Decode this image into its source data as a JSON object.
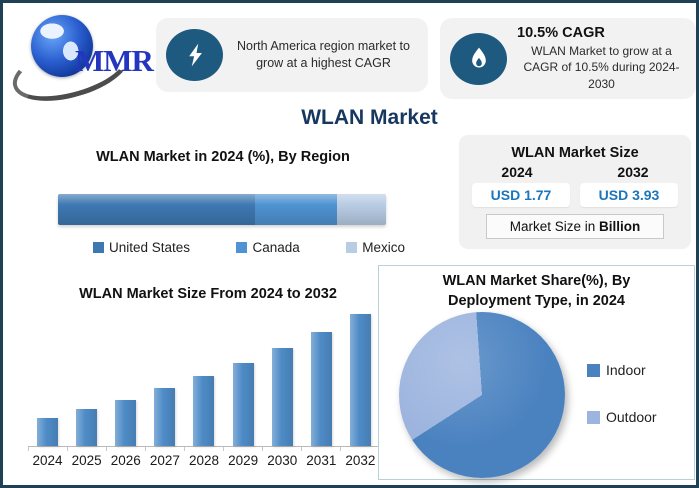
{
  "page": {
    "main_title": "WLAN Market"
  },
  "logo": {
    "text": "MMR"
  },
  "callout_lightning": {
    "icon": "lightning-icon",
    "text": "North America region market to grow at a highest CAGR"
  },
  "callout_flame": {
    "icon": "flame-icon",
    "heading": "10.5% CAGR",
    "text": "WLAN Market to grow at a CAGR of 10.5% during 2024-2030"
  },
  "market_size_panel": {
    "title": "WLAN Market Size",
    "entries": [
      {
        "year": "2024",
        "value": "USD 1.77"
      },
      {
        "year": "2032",
        "value": "USD 3.93"
      }
    ],
    "note_prefix": "Market Size in ",
    "note_bold": "Billion",
    "value_color": "#1b76bc"
  },
  "chart_data": [
    {
      "type": "bar",
      "variant": "horizontal-stacked-100pct",
      "title": "WLAN Market in 2024 (%), By Region",
      "unit": "%",
      "legend_position": "bottom",
      "series": [
        {
          "name": "United States",
          "value": 60,
          "color": "#3e78b2"
        },
        {
          "name": "Canada",
          "value": 25,
          "color": "#4f93d2"
        },
        {
          "name": "Mexico",
          "value": 15,
          "color": "#b8cce4"
        }
      ]
    },
    {
      "type": "bar",
      "title": "WLAN Market Size From 2024 to 2032",
      "categories": [
        "2024",
        "2025",
        "2026",
        "2027",
        "2028",
        "2029",
        "2030",
        "2031",
        "2032"
      ],
      "values": [
        1.77,
        1.96,
        2.16,
        2.39,
        2.64,
        2.92,
        3.22,
        3.56,
        3.93
      ],
      "unit": "USD Billion",
      "bar_color": "#4e8bc6",
      "value_labels_visible": false,
      "y_axis_visible": false,
      "grid": false
    },
    {
      "type": "pie",
      "title": "WLAN Market Share(%), By Deployment Type, in 2024",
      "start_angle_deg": -4,
      "legend_position": "right",
      "slices": [
        {
          "label": "Indoor",
          "value": 67,
          "color": "#4a82c0"
        },
        {
          "label": "Outdoor",
          "value": 33,
          "color": "#9cb4de"
        }
      ]
    }
  ]
}
